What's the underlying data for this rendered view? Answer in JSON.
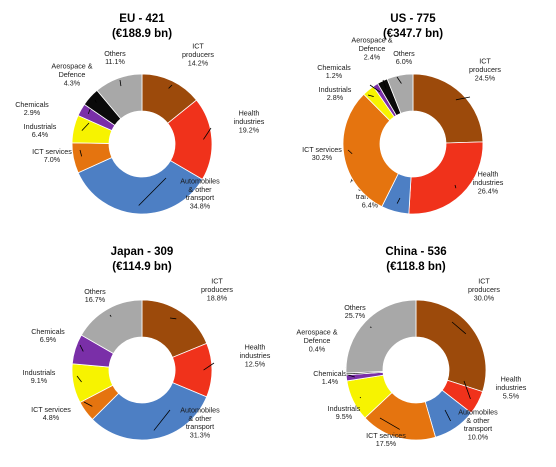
{
  "colors": {
    "ICT producers": "#9c4a0b",
    "Health industries": "#f0321b",
    "Automobiles & other transport": "#4d7fc4",
    "ICT services": "#e5740f",
    "Industrials": "#f7f300",
    "Chemicals": "#7a2fa8",
    "Aerospace & Defence": "#0a0a0a",
    "Others": "#a8a8a8"
  },
  "chart_data": [
    {
      "type": "pie",
      "title": "EU - 421",
      "subtitle": "(€188.9 bn)",
      "slices": [
        {
          "category": "ICT producers",
          "label_lines": [
            "ICT",
            "producers",
            "14.2%"
          ],
          "value": 14.2
        },
        {
          "category": "Health industries",
          "label_lines": [
            "Health",
            "industries",
            "19.2%"
          ],
          "value": 19.2
        },
        {
          "category": "Automobiles & other transport",
          "label_lines": [
            "Automobiles",
            "& other",
            "transport",
            "34.8%"
          ],
          "value": 34.8
        },
        {
          "category": "ICT services",
          "label_lines": [
            "ICT services",
            "7.0%"
          ],
          "value": 7.0
        },
        {
          "category": "Industrials",
          "label_lines": [
            "Industrials",
            "6.4%"
          ],
          "value": 6.4
        },
        {
          "category": "Chemicals",
          "label_lines": [
            "Chemicals",
            "2.9%"
          ],
          "value": 2.9
        },
        {
          "category": "Aerospace & Defence",
          "label_lines": [
            "Aerospace &",
            "Defence",
            "4.3%"
          ],
          "value": 4.3
        },
        {
          "category": "Others",
          "label_lines": [
            "Others",
            "11.1%"
          ],
          "value": 11.1
        }
      ]
    },
    {
      "type": "pie",
      "title": "US  - 775",
      "subtitle": "(€347.7 bn)",
      "slices": [
        {
          "category": "ICT producers",
          "label_lines": [
            "ICT",
            "producers",
            "24.5%"
          ],
          "value": 24.5
        },
        {
          "category": "Health industries",
          "label_lines": [
            "Health",
            "industries",
            "26.4%"
          ],
          "value": 26.4
        },
        {
          "category": "Automobiles & other transport",
          "label_lines": [
            "Automobiles",
            "& other",
            "transport",
            "6.4%"
          ],
          "value": 6.4
        },
        {
          "category": "ICT services",
          "label_lines": [
            "ICT services",
            "30.2%"
          ],
          "value": 30.2
        },
        {
          "category": "Industrials",
          "label_lines": [
            "Industrials",
            "2.8%"
          ],
          "value": 2.8
        },
        {
          "category": "Chemicals",
          "label_lines": [
            "Chemicals",
            "1.2%"
          ],
          "value": 1.2
        },
        {
          "category": "Aerospace & Defence",
          "label_lines": [
            "Aerospace &",
            "Defence",
            "2.4%"
          ],
          "value": 2.4
        },
        {
          "category": "Others",
          "label_lines": [
            "Others",
            "6.0%"
          ],
          "value": 6.0
        }
      ]
    },
    {
      "type": "pie",
      "title": "Japan - 309",
      "subtitle": "(€114.9 bn)",
      "slices": [
        {
          "category": "ICT producers",
          "label_lines": [
            "ICT",
            "producers",
            "18.8%"
          ],
          "value": 18.8
        },
        {
          "category": "Health industries",
          "label_lines": [
            "Health",
            "industries",
            "12.5%"
          ],
          "value": 12.5
        },
        {
          "category": "Automobiles & other transport",
          "label_lines": [
            "Automobiles",
            "& other",
            "transport",
            "31.3%"
          ],
          "value": 31.3
        },
        {
          "category": "ICT services",
          "label_lines": [
            "ICT services",
            "4.8%"
          ],
          "value": 4.8
        },
        {
          "category": "Industrials",
          "label_lines": [
            "Industrials",
            "9.1%"
          ],
          "value": 9.1
        },
        {
          "category": "Chemicals",
          "label_lines": [
            "Chemicals",
            "6.9%"
          ],
          "value": 6.9
        },
        {
          "category": "Others",
          "label_lines": [
            "Others",
            "16.7%"
          ],
          "value": 16.7
        }
      ]
    },
    {
      "type": "pie",
      "title": "China  - 536",
      "subtitle": "(€118.8 bn)",
      "slices": [
        {
          "category": "ICT producers",
          "label_lines": [
            "ICT",
            "producers",
            "30.0%"
          ],
          "value": 30.0
        },
        {
          "category": "Health industries",
          "label_lines": [
            "Health",
            "industries",
            "5.5%"
          ],
          "value": 5.5
        },
        {
          "category": "Automobiles & other transport",
          "label_lines": [
            "Automobiles",
            "& other",
            "transport",
            "10.0%"
          ],
          "value": 10.0
        },
        {
          "category": "ICT services",
          "label_lines": [
            "ICT services",
            "17.5%"
          ],
          "value": 17.5
        },
        {
          "category": "Industrials",
          "label_lines": [
            "Industrials",
            "9.5%"
          ],
          "value": 9.5
        },
        {
          "category": "Chemicals",
          "label_lines": [
            "Chemicals",
            "1.4%"
          ],
          "value": 1.4
        },
        {
          "category": "Aerospace & Defence",
          "label_lines": [
            "Aerospace &",
            "Defence",
            "0.4%"
          ],
          "value": 0.4
        },
        {
          "category": "Others",
          "label_lines": [
            "Others",
            "25.7%"
          ],
          "value": 25.7
        }
      ]
    }
  ]
}
